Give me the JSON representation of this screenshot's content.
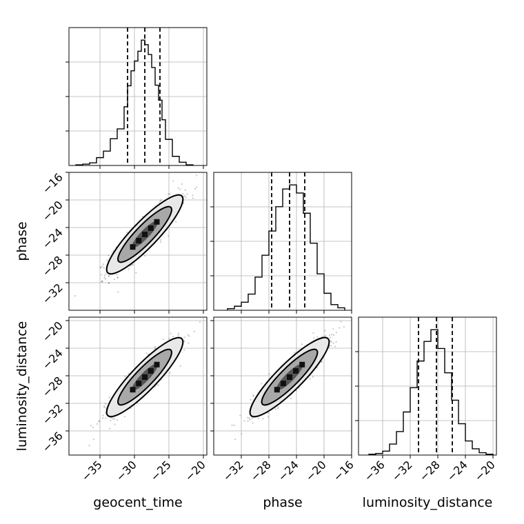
{
  "chart_data": {
    "type": "corner",
    "parameters": [
      "geocent_time",
      "phase",
      "luminosity_distance"
    ],
    "axis_labels": {
      "geocent_time": "geocent_time",
      "phase": "phase",
      "luminosity_distance": "luminosity_distance"
    },
    "ranges": {
      "geocent_time": [
        -39.5,
        -19.5
      ],
      "phase": [
        -36.0,
        -16.0
      ],
      "luminosity_distance": [
        -39.5,
        -19.5
      ]
    },
    "ticks": {
      "geocent_time": [
        -35,
        -30,
        -25,
        -20
      ],
      "phase": [
        -32,
        -28,
        -24,
        -20,
        -16
      ],
      "luminosity_distance": [
        -36,
        -32,
        -28,
        -24,
        -20
      ]
    },
    "tick_labels": {
      "geocent_time": [
        "−35",
        "−30",
        "−25",
        "−20"
      ],
      "phase_x": [
        "−32",
        "−28",
        "−24",
        "−20",
        "−16"
      ],
      "phase_y": [
        "−16",
        "−20",
        "−24",
        "−28",
        "−32"
      ],
      "luminosity_distance_x": [
        "−36",
        "−32",
        "−28",
        "−24",
        "−20"
      ],
      "luminosity_distance_y": [
        "−20",
        "−24",
        "−28",
        "−32",
        "−36"
      ]
    },
    "quantiles": {
      "geocent_time": [
        -31.0,
        -28.5,
        -26.3
      ],
      "phase": [
        -27.6,
        -25.0,
        -22.8
      ],
      "luminosity_distance": [
        -30.8,
        -28.2,
        -25.9
      ]
    },
    "marginals": {
      "geocent_time": {
        "bin_edges": [
          -38.5,
          -37.5,
          -36.5,
          -35.5,
          -34.5,
          -33.5,
          -32.5,
          -31.5,
          -31.0,
          -30.5,
          -30.0,
          -29.5,
          -29.0,
          -28.5,
          -28.0,
          -27.5,
          -27.0,
          -26.5,
          -26.0,
          -25.5,
          -24.5,
          -23.5,
          -22.5,
          -21.5
        ],
        "counts": [
          1,
          2,
          4,
          12,
          22,
          41,
          56,
          90,
          122,
          145,
          160,
          175,
          192,
          185,
          170,
          150,
          123,
          100,
          70,
          40,
          14,
          5,
          1
        ]
      },
      "phase": {
        "bin_edges": [
          -34,
          -33,
          -32,
          -31,
          -30,
          -29,
          -28,
          -27,
          -26,
          -25,
          -24,
          -23,
          -22,
          -21,
          -20,
          -19,
          -18,
          -17
        ],
        "counts": [
          2,
          5,
          10,
          20,
          41,
          68,
          98,
          128,
          150,
          155,
          145,
          120,
          83,
          45,
          21,
          7,
          3
        ]
      },
      "luminosity_distance": {
        "bin_edges": [
          -38,
          -37,
          -36,
          -35,
          -34,
          -33,
          -32,
          -31,
          -30,
          -29,
          -28,
          -27,
          -26,
          -25,
          -24,
          -23,
          -22,
          -21,
          -20
        ],
        "counts": [
          1,
          2,
          5,
          14,
          30,
          55,
          86,
          120,
          145,
          160,
          136,
          105,
          70,
          40,
          18,
          8,
          3,
          1
        ]
      }
    },
    "correlations": {
      "phase_vs_geocent_time": {
        "mean": [
          -28.5,
          -25.0
        ],
        "sd": [
          2.5,
          2.6
        ],
        "rho": 0.9
      },
      "luminosity_distance_vs_geocent_time": {
        "mean": [
          -28.5,
          -28.2
        ],
        "sd": [
          2.5,
          2.6
        ],
        "rho": 0.9
      },
      "luminosity_distance_vs_phase": {
        "mean": [
          -25.0,
          -28.2
        ],
        "sd": [
          2.6,
          2.6
        ],
        "rho": 0.9
      }
    },
    "grid": true
  }
}
